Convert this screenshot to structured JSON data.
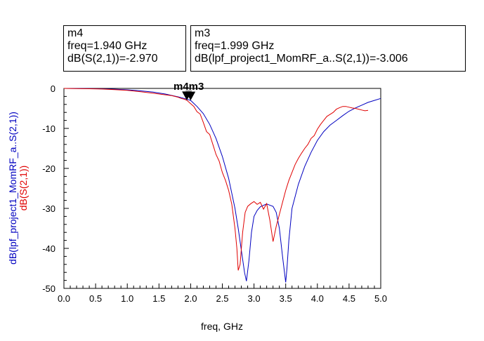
{
  "markers": [
    {
      "name": "m4",
      "freq": "freq=1.940 GHz",
      "value": "dB(S(2,1))=-2.970"
    },
    {
      "name": "m3",
      "freq": "freq=1.999 GHz",
      "value": "dB(lpf_project1_MomRF_a..S(2,1))=-3.006"
    }
  ],
  "marker_overlay_label": "m4̲m3",
  "chart_data": {
    "type": "line",
    "xlabel": "freq, GHz",
    "ylabel_blue": "dB(lpf_project1_MomRF_a..S(2,1))",
    "ylabel_red": "dB(S(2,1))",
    "xlim": [
      0,
      5
    ],
    "ylim": [
      -50,
      0
    ],
    "x_ticks": [
      "0.0",
      "0.5",
      "1.0",
      "1.5",
      "2.0",
      "2.5",
      "3.0",
      "3.5",
      "4.0",
      "4.5",
      "5.0"
    ],
    "y_ticks": [
      "0",
      "-10",
      "-20",
      "-30",
      "-40",
      "-50"
    ],
    "grid": false,
    "series": [
      {
        "name": "dB(lpf_project1_MomRF_a..S(2,1))",
        "color": "#0000c0",
        "x": [
          0.0,
          0.2,
          0.4,
          0.6,
          0.8,
          1.0,
          1.2,
          1.4,
          1.6,
          1.8,
          1.9,
          2.0,
          2.1,
          2.2,
          2.3,
          2.4,
          2.5,
          2.6,
          2.7,
          2.75,
          2.8,
          2.85,
          2.88,
          2.92,
          2.96,
          3.0,
          3.05,
          3.1,
          3.2,
          3.3,
          3.35,
          3.4,
          3.45,
          3.5,
          3.52,
          3.55,
          3.6,
          3.7,
          3.8,
          3.9,
          4.0,
          4.1,
          4.2,
          4.3,
          4.4,
          4.5,
          4.6,
          4.7,
          4.8,
          4.9,
          5.0
        ],
        "y": [
          0,
          -0.02,
          -0.05,
          -0.1,
          -0.2,
          -0.35,
          -0.6,
          -0.9,
          -1.4,
          -2.1,
          -2.5,
          -3.006,
          -4.5,
          -6.3,
          -9.0,
          -12.5,
          -17,
          -22.5,
          -30,
          -35,
          -40.5,
          -46,
          -48.2,
          -43,
          -36,
          -32,
          -30.5,
          -29.6,
          -28.9,
          -29.5,
          -31,
          -35,
          -42,
          -48.5,
          -45,
          -38,
          -30,
          -24,
          -19.5,
          -16,
          -13,
          -10.8,
          -9.2,
          -8,
          -6.8,
          -5.7,
          -4.9,
          -4.2,
          -3.5,
          -3.0,
          -2.5
        ]
      },
      {
        "name": "dB(S(2,1))",
        "color": "#e00000",
        "x": [
          0.0,
          0.2,
          0.4,
          0.6,
          0.8,
          1.0,
          1.2,
          1.4,
          1.6,
          1.7,
          1.8,
          1.85,
          1.9,
          1.94,
          2.0,
          2.05,
          2.1,
          2.15,
          2.2,
          2.25,
          2.3,
          2.35,
          2.4,
          2.45,
          2.5,
          2.55,
          2.6,
          2.65,
          2.7,
          2.73,
          2.75,
          2.78,
          2.82,
          2.86,
          2.9,
          2.95,
          3.0,
          3.05,
          3.1,
          3.15,
          3.2,
          3.25,
          3.3,
          3.35,
          3.4,
          3.45,
          3.5,
          3.55,
          3.6,
          3.65,
          3.7,
          3.75,
          3.8,
          3.85,
          3.9,
          3.95,
          4.0,
          4.05,
          4.1,
          4.15,
          4.2,
          4.25,
          4.3,
          4.35,
          4.4,
          4.45,
          4.5,
          4.55,
          4.6,
          4.65,
          4.7,
          4.75,
          4.8
        ],
        "y": [
          0,
          -0.03,
          -0.08,
          -0.15,
          -0.3,
          -0.5,
          -0.8,
          -1.2,
          -1.6,
          -1.8,
          -2.2,
          -2.5,
          -2.7,
          -2.97,
          -3.8,
          -4.5,
          -5.8,
          -6.4,
          -8.5,
          -10.8,
          -11.5,
          -14.0,
          -16.5,
          -18.2,
          -21.0,
          -23.0,
          -25.5,
          -29.0,
          -35.0,
          -40.0,
          -45.5,
          -44.0,
          -36.0,
          -31.0,
          -29.5,
          -28.8,
          -28.3,
          -29.0,
          -28.5,
          -30.2,
          -28.8,
          -33.0,
          -38.3,
          -34.5,
          -31.5,
          -28.5,
          -25.5,
          -23.0,
          -21.0,
          -19.0,
          -17.5,
          -16.2,
          -15.0,
          -14.0,
          -12.5,
          -11.8,
          -10.2,
          -9.0,
          -8.0,
          -7.0,
          -6.5,
          -6.0,
          -5.2,
          -4.8,
          -4.5,
          -4.5,
          -4.7,
          -4.9,
          -5.0,
          -5.2,
          -5.4,
          -5.6,
          -5.5
        ]
      }
    ]
  }
}
